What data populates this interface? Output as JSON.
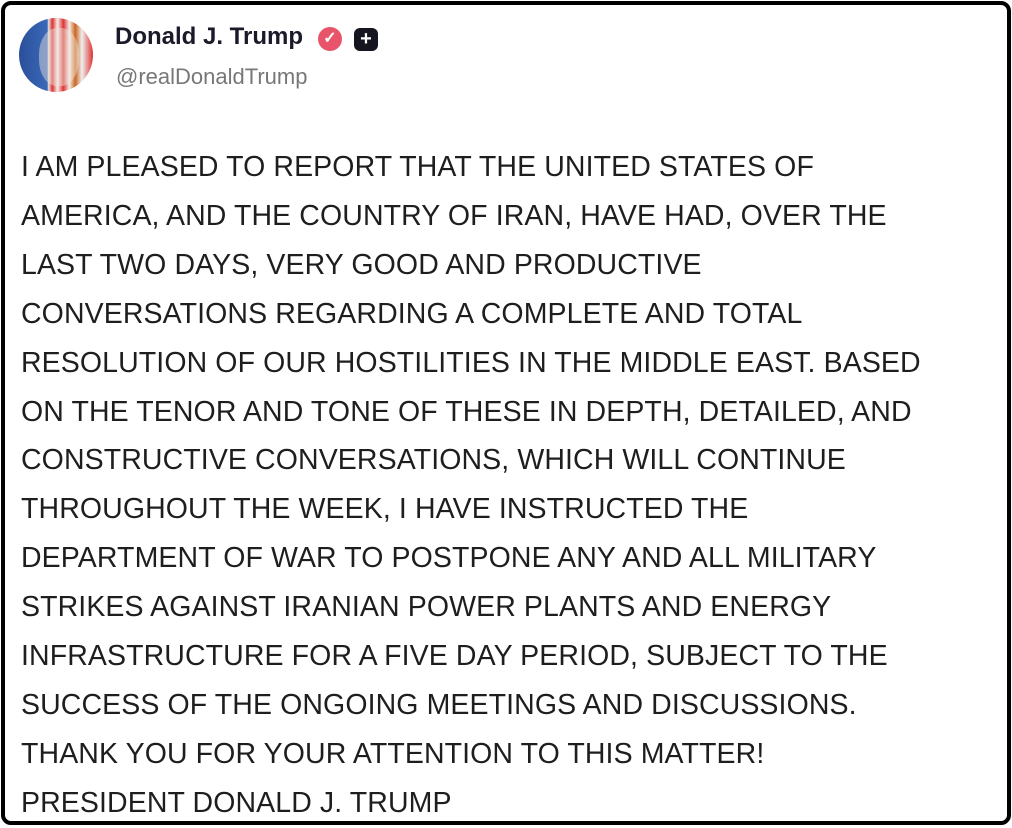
{
  "post": {
    "author_name": "Donald J. Trump",
    "handle": "@realDonaldTrump",
    "verified_icon": "verified-badge-icon",
    "verified_color": "#e8556b",
    "plus_icon": "plus-badge-icon",
    "lines": [
      "I AM PLEASED TO REPORT THAT THE UNITED STATES OF",
      "AMERICA, AND THE COUNTRY OF IRAN, HAVE HAD, OVER THE",
      "LAST TWO DAYS, VERY GOOD AND PRODUCTIVE",
      "CONVERSATIONS REGARDING A COMPLETE AND TOTAL",
      "RESOLUTION OF OUR HOSTILITIES IN THE MIDDLE EAST. BASED",
      "ON THE TENOR AND TONE OF THESE IN DEPTH, DETAILED, AND",
      "CONSTRUCTIVE CONVERSATIONS, WHICH WILL CONTINUE",
      "THROUGHOUT THE WEEK, I HAVE INSTRUCTED THE",
      "DEPARTMENT OF WAR TO POSTPONE ANY AND ALL MILITARY",
      "STRIKES AGAINST IRANIAN POWER PLANTS AND ENERGY",
      "INFRASTRUCTURE FOR A FIVE DAY PERIOD, SUBJECT TO THE",
      "SUCCESS OF THE ONGOING MEETINGS AND DISCUSSIONS.",
      "THANK YOU FOR YOUR ATTENTION TO THIS MATTER!",
      "PRESIDENT DONALD J. TRUMP"
    ]
  }
}
